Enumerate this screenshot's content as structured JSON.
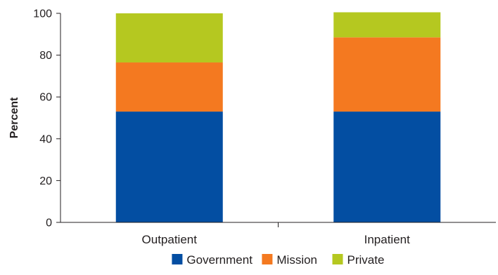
{
  "chart_data": {
    "type": "bar",
    "stacked": true,
    "categories": [
      "Outpatient",
      "Inpatient"
    ],
    "series": [
      {
        "name": "Government",
        "values": [
          53,
          53
        ],
        "color": "#034ea2"
      },
      {
        "name": "Mission",
        "values": [
          23.5,
          35.5
        ],
        "color": "#f47920"
      },
      {
        "name": "Private",
        "values": [
          23.5,
          12
        ],
        "color": "#b5c820"
      }
    ],
    "xlabel": "",
    "ylabel": "Percent",
    "ylim": [
      0,
      100
    ],
    "yticks": [
      0,
      20,
      40,
      60,
      80,
      100
    ],
    "grid": false,
    "legend_position": "bottom-center"
  }
}
